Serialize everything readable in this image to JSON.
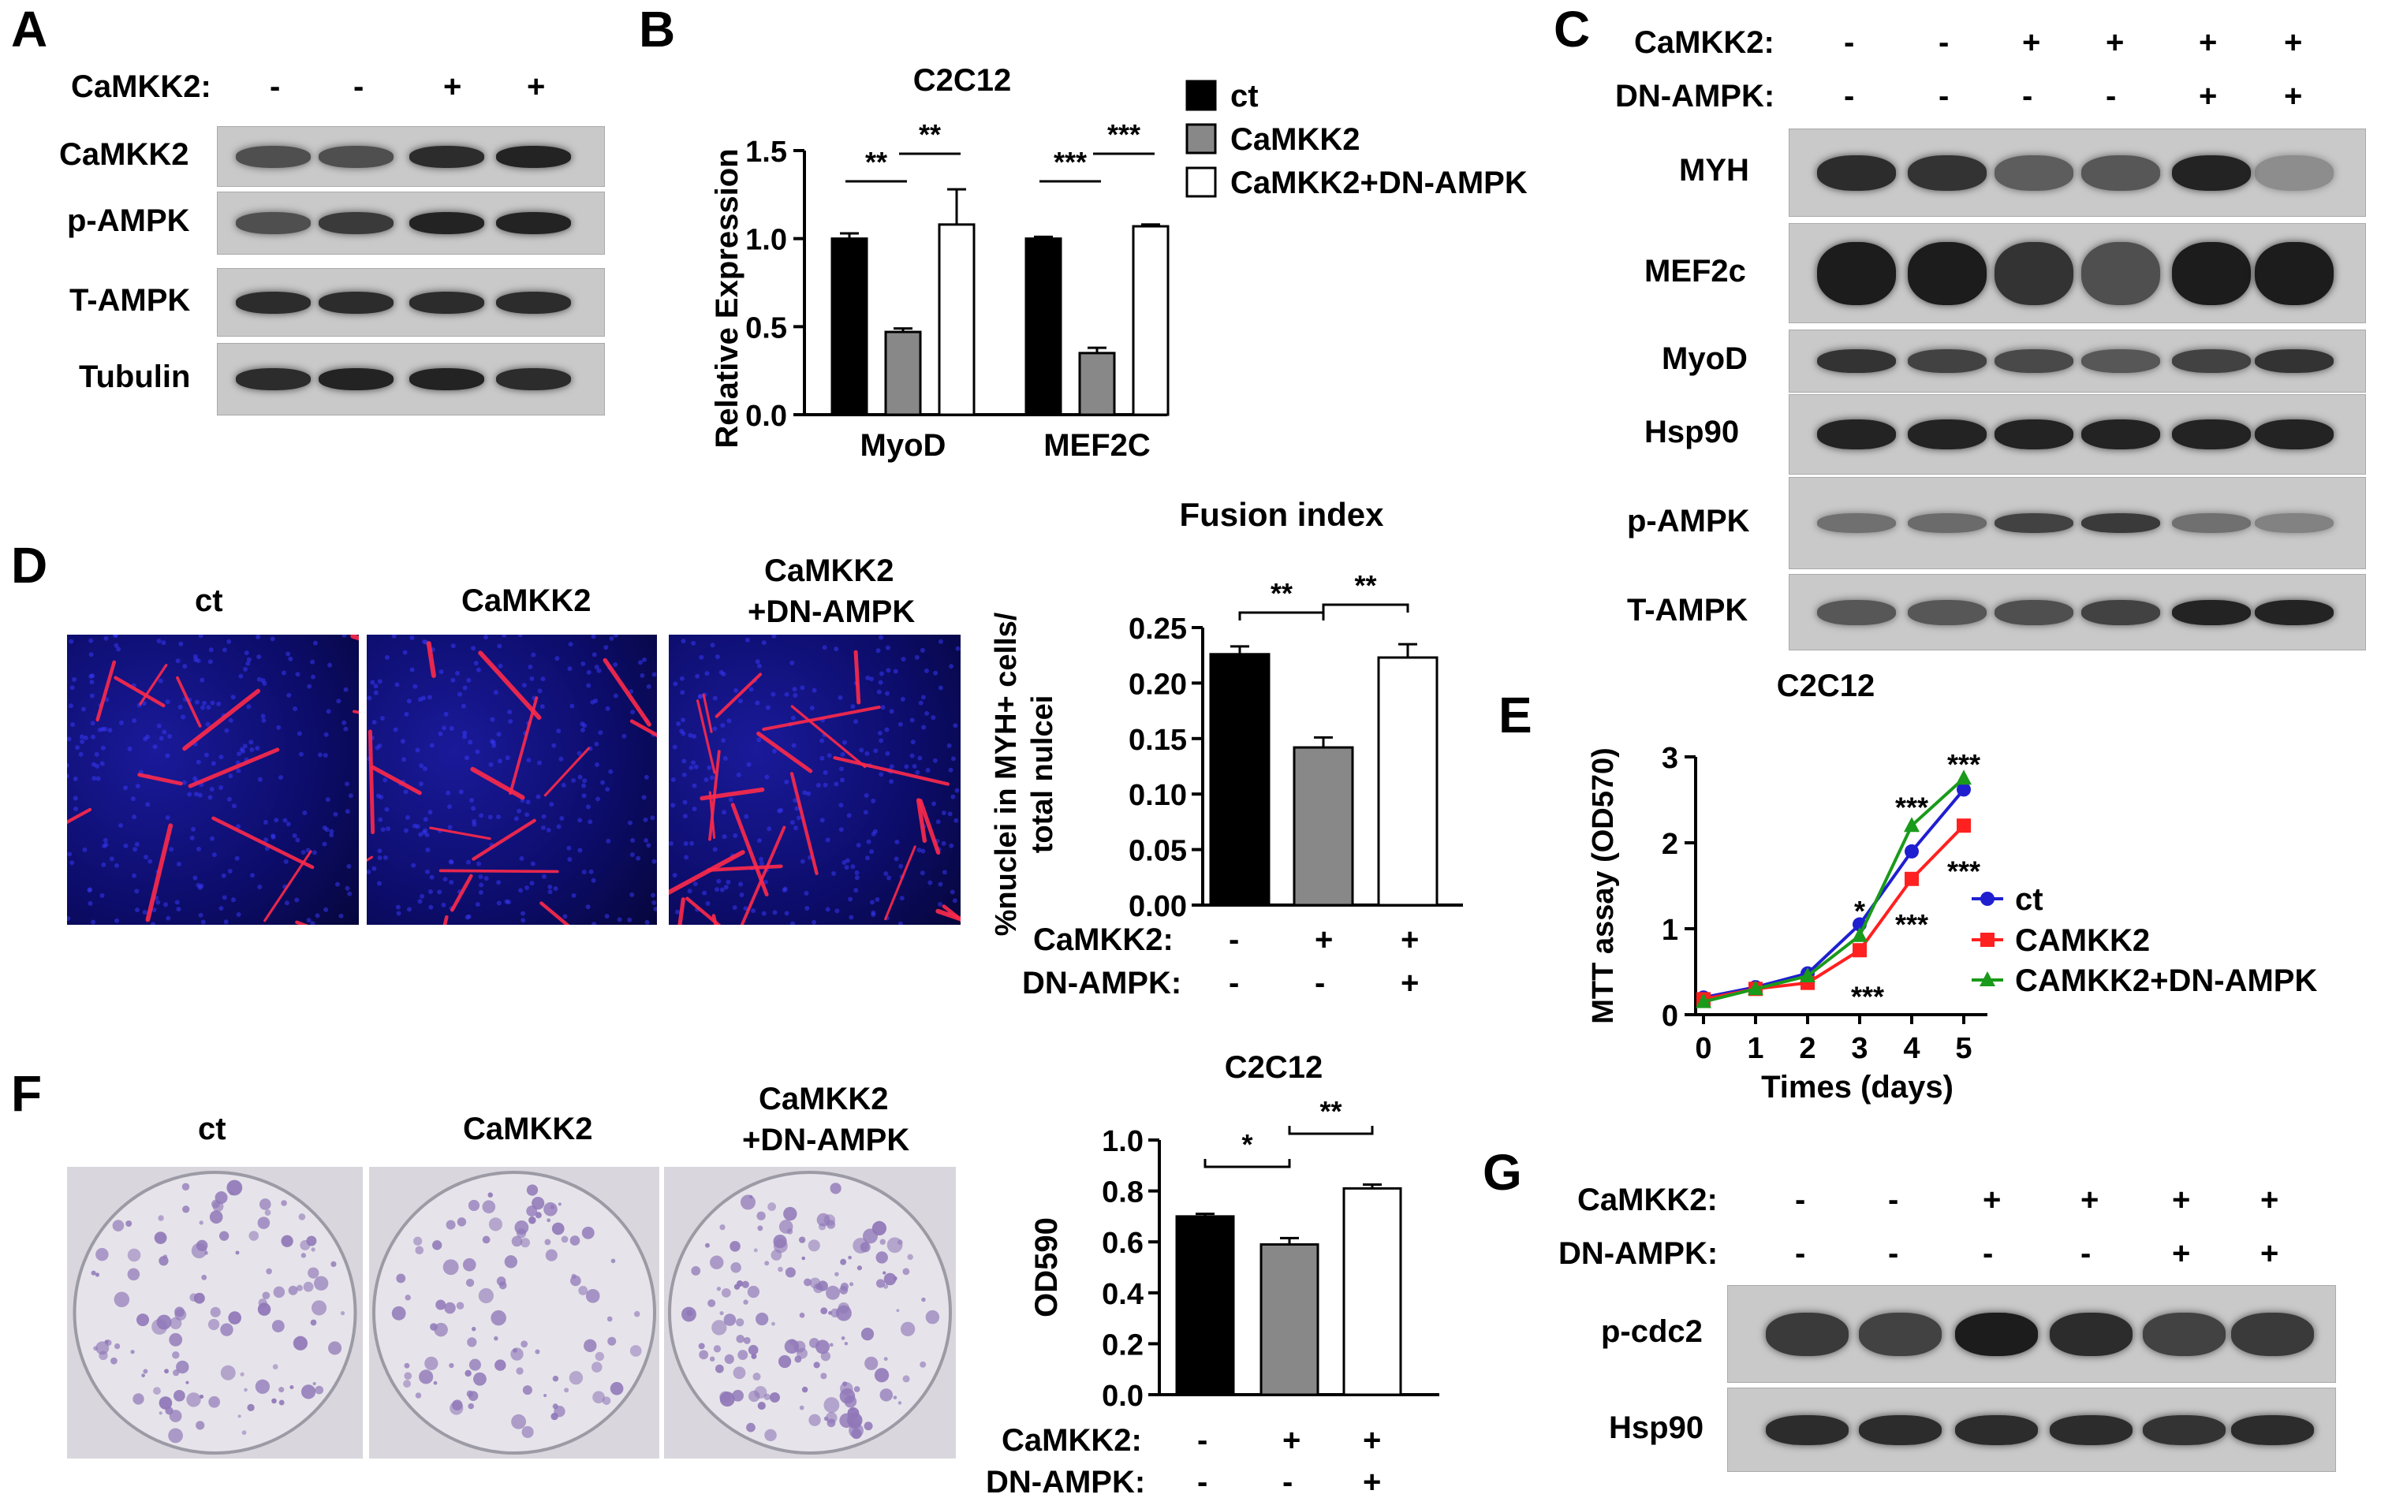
{
  "panels": {
    "A": {
      "letter": "A",
      "header_label": "CaMKK2:",
      "signs": [
        "-",
        "-",
        "+",
        "+"
      ],
      "rows": [
        "CaMKK2",
        "p-AMPK",
        "T-AMPK",
        "Tubulin"
      ]
    },
    "C": {
      "letter": "C",
      "camkk2_label": "CaMKK2:",
      "camkk2_signs": [
        "-",
        "-",
        "+",
        "+",
        "+",
        "+"
      ],
      "dnampk_label": "DN-AMPK:",
      "dnampk_signs": [
        "-",
        "-",
        "-",
        "-",
        "+",
        "+"
      ],
      "rows": [
        "MYH",
        "MEF2c",
        "MyoD",
        "Hsp90",
        "p-AMPK",
        "T-AMPK"
      ]
    },
    "D": {
      "letter": "D",
      "images": [
        "ct",
        "CaMKK2",
        "CaMKK2\n+DN-AMPK"
      ],
      "camkk2_label": "CaMKK2:",
      "camkk2_signs": [
        "-",
        "+",
        "+"
      ],
      "dnampk_label": "DN-AMPK:",
      "dnampk_signs": [
        "-",
        "-",
        "+"
      ]
    },
    "E": {
      "letter": "E"
    },
    "F": {
      "letter": "F",
      "images": [
        "ct",
        "CaMKK2",
        "CaMKK2\n+DN-AMPK"
      ],
      "camkk2_label": "CaMKK2:",
      "camkk2_signs": [
        "-",
        "+",
        "+"
      ],
      "dnampk_label": "DN-AMPK:",
      "dnampk_signs": [
        "-",
        "-",
        "+"
      ]
    },
    "G": {
      "letter": "G",
      "camkk2_label": "CaMKK2:",
      "camkk2_signs": [
        "-",
        "-",
        "+",
        "+",
        "+",
        "+"
      ],
      "dnampk_label": "DN-AMPK:",
      "dnampk_signs": [
        "-",
        "-",
        "-",
        "-",
        "+",
        "+"
      ],
      "rows": [
        "p-cdc2",
        "Hsp90"
      ]
    }
  },
  "colors": {
    "ct_bar": "#000000",
    "camkk2_bar": "#888888",
    "dn_bar": "#ffffff",
    "line_ct": "#1f1fd0",
    "line_camkk2": "#ff2020",
    "line_dn": "#1a9a1a"
  },
  "chart_data": [
    {
      "panel": "B",
      "type": "bar",
      "title": "C2C12",
      "ylabel": "Relative Expression",
      "categories": [
        "MyoD",
        "MEF2C"
      ],
      "ylim": [
        0,
        1.5
      ],
      "yticks": [
        "0.0",
        "0.5",
        "1.0",
        "1.5"
      ],
      "legend_position": "top-right",
      "series": [
        {
          "name": "ct",
          "values": [
            1.0,
            1.0
          ],
          "errors": [
            0.03,
            0.01
          ]
        },
        {
          "name": "CaMKK2",
          "values": [
            0.47,
            0.35
          ],
          "errors": [
            0.02,
            0.03
          ]
        },
        {
          "name": "CaMKK2+DN-AMPK",
          "values": [
            1.08,
            1.07
          ],
          "errors": [
            0.2,
            0.01
          ]
        }
      ],
      "significance": [
        {
          "category": 0,
          "pair": [
            0,
            1
          ],
          "label": "**"
        },
        {
          "category": 0,
          "pair": [
            1,
            2
          ],
          "label": "**"
        },
        {
          "category": 1,
          "pair": [
            0,
            1
          ],
          "label": "***"
        },
        {
          "category": 1,
          "pair": [
            1,
            2
          ],
          "label": "***"
        }
      ]
    },
    {
      "panel": "D",
      "type": "bar",
      "title": "Fusion index",
      "ylabel": "%nuclei in MYH+ cells/\ntotal nulcei",
      "ylim": [
        0,
        0.25
      ],
      "yticks": [
        "0.00",
        "0.05",
        "0.10",
        "0.15",
        "0.20",
        "0.25"
      ],
      "values": [
        0.226,
        0.142,
        0.223
      ],
      "errors": [
        0.007,
        0.009,
        0.012
      ],
      "significance": [
        {
          "pair": [
            0,
            1
          ],
          "label": "**"
        },
        {
          "pair": [
            1,
            2
          ],
          "label": "**"
        }
      ]
    },
    {
      "panel": "E",
      "type": "line",
      "title": "C2C12",
      "xlabel": "Times (days)",
      "ylabel": "MTT assay (OD570)",
      "x": [
        0,
        1,
        2,
        3,
        4,
        5
      ],
      "xticks": [
        "0",
        "1",
        "2",
        "3",
        "4",
        "5"
      ],
      "ylim": [
        0,
        3
      ],
      "yticks": [
        "0",
        "1",
        "2",
        "3"
      ],
      "legend_position": "right",
      "series": [
        {
          "name": "ct",
          "values": [
            0.2,
            0.32,
            0.48,
            1.05,
            1.9,
            2.62
          ]
        },
        {
          "name": "CAMKK2",
          "values": [
            0.18,
            0.3,
            0.37,
            0.75,
            1.58,
            2.2
          ]
        },
        {
          "name": "CAMKK2+DN-AMPK",
          "values": [
            0.15,
            0.3,
            0.45,
            0.92,
            2.2,
            2.75
          ]
        }
      ],
      "annotations": [
        {
          "x": 3,
          "label": "*",
          "pos": "above"
        },
        {
          "x": 3,
          "label": "***",
          "pos": "below"
        },
        {
          "x": 4,
          "label": "***",
          "pos": "above"
        },
        {
          "x": 4,
          "label": "***",
          "pos": "below"
        },
        {
          "x": 5,
          "label": "***",
          "pos": "above"
        },
        {
          "x": 5,
          "label": "***",
          "pos": "below"
        }
      ]
    },
    {
      "panel": "F",
      "type": "bar",
      "title": "C2C12",
      "ylabel": "OD590",
      "ylim": [
        0,
        1.0
      ],
      "yticks": [
        "0.0",
        "0.2",
        "0.4",
        "0.6",
        "0.8",
        "1.0"
      ],
      "values": [
        0.7,
        0.59,
        0.81
      ],
      "errors": [
        0.01,
        0.025,
        0.015
      ],
      "significance": [
        {
          "pair": [
            0,
            1
          ],
          "label": "*"
        },
        {
          "pair": [
            1,
            2
          ],
          "label": "**"
        }
      ]
    }
  ]
}
